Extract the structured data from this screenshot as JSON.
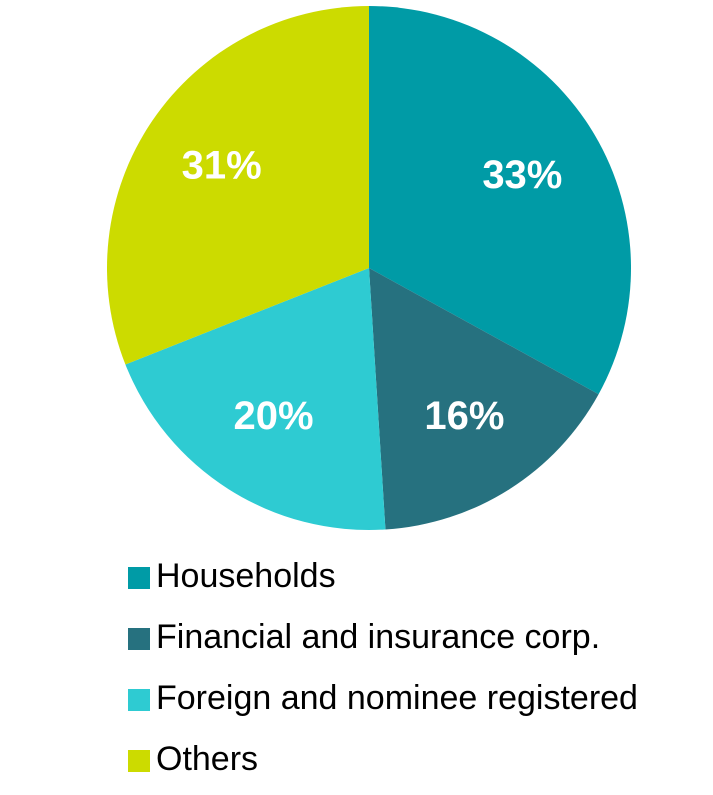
{
  "chart_data": {
    "type": "pie",
    "categories": [
      "Households",
      "Financial and insurance corp.",
      "Foreign and nominee registered",
      "Others"
    ],
    "values": [
      33,
      16,
      20,
      31
    ],
    "value_labels": [
      "33%",
      "16%",
      "20%",
      "31%"
    ],
    "colors": [
      "#009ba6",
      "#26717f",
      "#2ecbd2",
      "#ccdb00"
    ],
    "legend": "bottom"
  }
}
